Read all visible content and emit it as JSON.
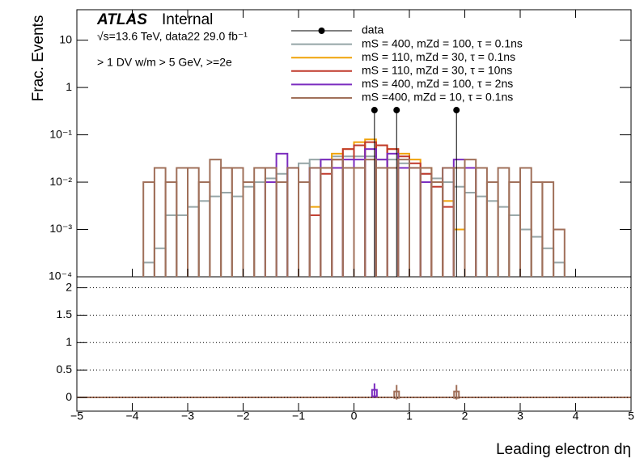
{
  "chart_data": [
    {
      "type": "histogram",
      "ylabel": "Frac. Events",
      "experiment": "ATLAS",
      "status": "Internal",
      "energy_label": "√s=13.6 TeV, data22 29.0 fb⁻¹",
      "selection_label": "> 1 DV w/m > 5 GeV, >=2e",
      "log_scale": true,
      "xlim": [
        -5,
        5
      ],
      "ylim": [
        0.0001,
        44
      ],
      "yticks": [
        {
          "value": 0.0001,
          "label": "10⁻⁴"
        },
        {
          "value": 0.001,
          "label": "10⁻³"
        },
        {
          "value": 0.01,
          "label": "10⁻²"
        },
        {
          "value": 0.1,
          "label": "10⁻¹"
        },
        1,
        10
      ],
      "bins": [
        -4,
        -3.8,
        -3.6,
        -3.4,
        -3.2,
        -3,
        -2.8,
        -2.6,
        -2.4,
        -2.2,
        -2,
        -1.8,
        -1.6,
        -1.4,
        -1.2,
        -1,
        -0.8,
        -0.6,
        -0.4,
        -0.2,
        0,
        0.2,
        0.4,
        0.6,
        0.8,
        1,
        1.2,
        1.4,
        1.6,
        1.8,
        2,
        2.2,
        2.4,
        2.6,
        2.8,
        3,
        3.2,
        3.4,
        3.6,
        3.8,
        4
      ],
      "data": {
        "name": "data",
        "color": "#000000",
        "x": [
          0.37,
          0.77,
          1.85
        ],
        "values": [
          0.333,
          0.333,
          0.333
        ]
      },
      "series": [
        {
          "name": "mS = 400, mZd = 100, τ = 0.1ns",
          "color": "#95a5a6",
          "values": [
            null,
            0.0002,
            0.0004,
            0.002,
            0.002,
            0.003,
            0.004,
            0.005,
            0.006,
            0.005,
            0.008,
            0.01,
            0.012,
            0.015,
            0.02,
            0.025,
            0.03,
            0.03,
            0.035,
            0.035,
            0.035,
            0.035,
            0.03,
            0.03,
            0.025,
            0.02,
            0.015,
            0.012,
            0.01,
            0.008,
            0.006,
            0.005,
            0.004,
            0.003,
            0.002,
            0.001,
            0.0007,
            0.0004,
            0.0002,
            null
          ]
        },
        {
          "name": "mS = 110, mZd = 30, τ = 0.1ns",
          "color": "#f0a30a",
          "values": [
            null,
            null,
            null,
            null,
            null,
            null,
            null,
            null,
            null,
            null,
            null,
            null,
            null,
            null,
            null,
            null,
            0.003,
            0.02,
            0.04,
            0.05,
            0.07,
            0.08,
            0.06,
            0.05,
            0.04,
            0.03,
            0.02,
            0.01,
            0.004,
            0.001,
            null,
            null,
            null,
            null,
            null,
            null,
            null,
            null,
            null,
            null
          ]
        },
        {
          "name": "mS = 110, mZd = 30, τ = 10ns",
          "color": "#c0392b",
          "values": [
            null,
            null,
            null,
            null,
            null,
            null,
            null,
            null,
            null,
            null,
            null,
            null,
            null,
            null,
            null,
            null,
            0.002,
            0.015,
            0.03,
            0.05,
            0.06,
            0.07,
            0.06,
            0.05,
            0.035,
            0.025,
            0.015,
            0.008,
            0.003,
            null,
            null,
            null,
            null,
            null,
            null,
            null,
            null,
            null,
            null,
            null
          ]
        },
        {
          "name": "mS = 400, mZd = 100, τ = 2ns",
          "color": "#7b2cbf",
          "values": [
            null,
            null,
            null,
            null,
            null,
            null,
            null,
            null,
            null,
            null,
            null,
            null,
            0.01,
            0.04,
            0.02,
            null,
            0.02,
            0.03,
            0.02,
            0.03,
            0.03,
            0.05,
            0.03,
            0.04,
            0.02,
            0.02,
            0.01,
            null,
            0.02,
            0.03,
            0.02,
            null,
            null,
            null,
            null,
            null,
            null,
            null,
            null,
            null
          ]
        },
        {
          "name": "mS =400, mZd = 10, τ = 0.1ns",
          "color": "#a0705a",
          "values": [
            null,
            0.01,
            0.02,
            0.01,
            0.02,
            0.02,
            0.01,
            0.03,
            0.02,
            0.02,
            0.01,
            0.02,
            0.02,
            0.01,
            0.02,
            0.01,
            0.02,
            0.02,
            0.03,
            0.02,
            0.02,
            0.03,
            0.02,
            0.02,
            0.03,
            0.02,
            0.02,
            0.01,
            0.02,
            0.02,
            0.03,
            0.02,
            0.01,
            0.02,
            0.01,
            0.02,
            0.01,
            0.01,
            0.001,
            null
          ]
        }
      ]
    },
    {
      "type": "ratio",
      "xlabel": "Leading electron dη",
      "xlim": [
        -5,
        5
      ],
      "ylim": [
        -0.25,
        2.2
      ],
      "xticks": [
        {
          "value": -5,
          "label": "−5"
        },
        {
          "value": -4,
          "label": "−4"
        },
        {
          "value": -3,
          "label": "−3"
        },
        {
          "value": -2,
          "label": "−2"
        },
        {
          "value": -1,
          "label": "−1"
        },
        0,
        1,
        2,
        3,
        4,
        5
      ],
      "yticks": [
        0,
        0.5,
        1,
        1.5,
        2
      ],
      "series": [
        {
          "color": "#7b2cbf",
          "x": [
            0.37
          ],
          "values": [
            0.08
          ]
        },
        {
          "color": "#a0705a",
          "x": [
            0.77,
            1.85
          ],
          "values": [
            0.05,
            0.05
          ]
        }
      ]
    }
  ]
}
